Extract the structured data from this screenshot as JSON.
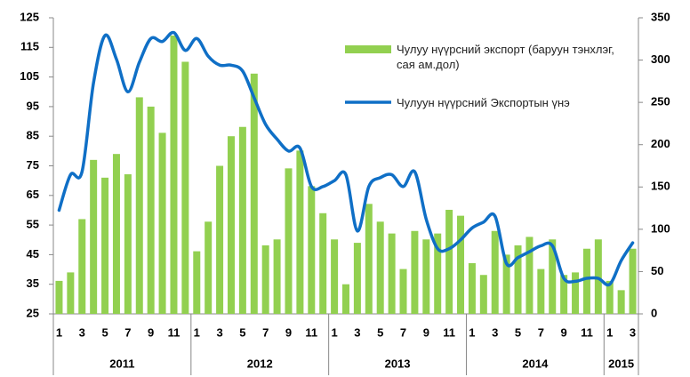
{
  "chart_data": {
    "type": "bar_line",
    "categories": [
      "1",
      null,
      "3",
      null,
      "5",
      null,
      "7",
      null,
      "9",
      null,
      "11",
      null,
      "1",
      null,
      "3",
      null,
      "5",
      null,
      "7",
      null,
      "9",
      null,
      "11",
      null,
      "1",
      null,
      "3",
      null,
      "5",
      null,
      "7",
      null,
      "9",
      null,
      "11",
      null,
      "1",
      null,
      "3",
      null,
      "5",
      null,
      "7",
      null,
      "9",
      null,
      "11",
      null,
      "1",
      null,
      "3"
    ],
    "groups": [
      {
        "label": "2011",
        "count": 12
      },
      {
        "label": "2012",
        "count": 12
      },
      {
        "label": "2013",
        "count": 12
      },
      {
        "label": "2014",
        "count": 12
      },
      {
        "label": "2015",
        "count": 3
      }
    ],
    "series": [
      {
        "name": "Чулуу нүүрсний экспорт (баруун тэнхлэг, сая ам.дол)",
        "color": "#92d050",
        "type": "bar",
        "axis": "y2",
        "values": [
          39,
          49,
          112,
          182,
          161,
          189,
          165,
          256,
          245,
          214,
          329,
          298,
          74,
          109,
          175,
          210,
          221,
          284,
          81,
          88,
          172,
          193,
          151,
          119,
          88,
          35,
          84,
          130,
          109,
          95,
          53,
          98,
          88,
          95,
          123,
          116,
          60,
          46,
          98,
          70,
          81,
          91,
          53,
          88,
          46,
          49,
          77,
          88,
          39,
          28,
          77
        ]
      },
      {
        "name": "Чулуун нүүрсний Экспортын үнэ",
        "color": "#0f6fc6",
        "type": "line",
        "values": [
          60,
          72,
          73,
          103,
          119,
          111,
          100,
          110,
          118,
          117,
          120,
          114,
          118,
          112,
          109,
          109,
          107,
          98,
          89,
          84,
          80,
          81,
          68,
          68,
          70,
          72,
          53,
          68,
          71,
          72,
          68,
          73,
          57,
          47,
          47,
          50,
          54,
          56,
          58,
          42,
          44,
          46,
          48,
          48,
          37,
          36,
          37,
          37,
          35,
          43,
          49
        ]
      }
    ],
    "ylim": [
      25,
      125
    ],
    "yticks": [
      25,
      35,
      45,
      55,
      65,
      75,
      85,
      95,
      105,
      115,
      125
    ],
    "y2lim": [
      0,
      350
    ],
    "y2ticks": [
      0,
      50,
      100,
      150,
      200,
      250,
      300,
      350
    ]
  }
}
